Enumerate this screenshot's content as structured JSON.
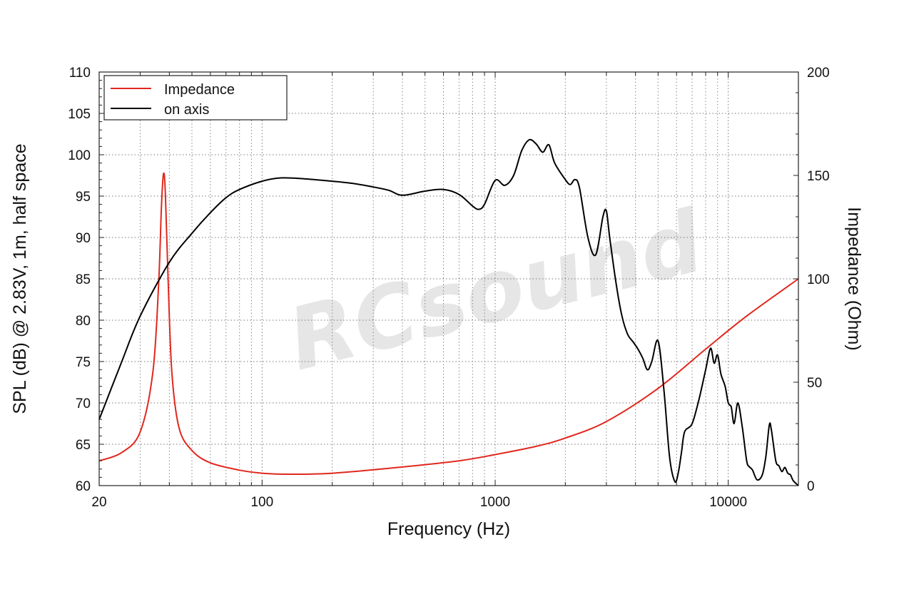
{
  "chart_data": {
    "type": "line",
    "title": "",
    "xlabel": "Frequency (Hz)",
    "ylabel": "SPL (dB) @ 2.83V, 1m, half space",
    "y2label": "Impedance (Ohm)",
    "xscale": "log",
    "xlim": [
      20,
      20000
    ],
    "ylim": [
      60,
      110
    ],
    "y2lim": [
      0,
      200
    ],
    "x_ticks": [
      20,
      100,
      1000,
      10000
    ],
    "x_tick_labels": [
      "20",
      "100",
      "1000",
      "10000"
    ],
    "y_ticks": [
      60,
      65,
      70,
      75,
      80,
      85,
      90,
      95,
      100,
      105,
      110
    ],
    "y2_ticks": [
      0,
      50,
      100,
      150,
      200
    ],
    "grid": true,
    "legend_position": "top-left",
    "watermark": "RCsound",
    "series": [
      {
        "name": "Impedance",
        "axis": "right",
        "color": "#e0281e",
        "x": [
          20,
          25,
          30,
          34,
          36,
          37,
          37.8,
          38.5,
          39.5,
          41,
          44,
          50,
          60,
          80,
          100,
          130,
          200,
          400,
          700,
          1000,
          1500,
          2000,
          3000,
          5000,
          8000,
          12000,
          20000
        ],
        "y": [
          12,
          16,
          26,
          55,
          98,
          135,
          151,
          140,
          100,
          55,
          28,
          17,
          11,
          7.5,
          6,
          5.5,
          6,
          9,
          12,
          15,
          19,
          23,
          31,
          47,
          66,
          82,
          100
        ]
      },
      {
        "name": "on axis",
        "axis": "left",
        "color": "#000000",
        "x": [
          20,
          25,
          30,
          40,
          50,
          60,
          70,
          80,
          100,
          120,
          150,
          200,
          250,
          300,
          350,
          400,
          500,
          600,
          700,
          800,
          850,
          900,
          1000,
          1100,
          1200,
          1300,
          1400,
          1500,
          1600,
          1700,
          1800,
          2000,
          2100,
          2200,
          2300,
          2500,
          2700,
          2900,
          3000,
          3100,
          3300,
          3500,
          3700,
          3900,
          4100,
          4300,
          4500,
          4700,
          5000,
          5300,
          5600,
          5900,
          6100,
          6300,
          6500,
          7000,
          7500,
          8000,
          8400,
          8700,
          9000,
          9300,
          9700,
          10000,
          10300,
          10600,
          11000,
          11500,
          12000,
          12300,
          12700,
          13300,
          14000,
          14500,
          15000,
          15300,
          16000,
          16500,
          17000,
          17500,
          18000,
          18500,
          19000,
          20000
        ],
        "y": [
          68,
          75,
          80.5,
          87,
          90.5,
          93,
          94.8,
          95.8,
          96.8,
          97.2,
          97.1,
          96.8,
          96.5,
          96.1,
          95.7,
          95.1,
          95.6,
          95.8,
          95.2,
          93.8,
          93.4,
          94,
          96.9,
          96.3,
          97.5,
          100.5,
          101.8,
          101.3,
          100.3,
          101.2,
          99,
          97,
          96.4,
          97,
          96,
          90,
          87.9,
          92.5,
          93.2,
          90,
          84.5,
          80.5,
          78.3,
          77.4,
          76.5,
          75.4,
          74,
          75,
          77.5,
          71.5,
          63.5,
          60.5,
          61.5,
          64,
          66.5,
          67.5,
          70.5,
          74,
          76.6,
          74.8,
          75.8,
          73.5,
          72,
          70,
          69.5,
          67.5,
          70,
          67,
          63,
          62.3,
          61.9,
          60.7,
          61.3,
          63.5,
          67.3,
          66.8,
          63,
          62.4,
          61.7,
          62.2,
          61.5,
          61.3,
          60.6,
          60
        ]
      }
    ]
  }
}
